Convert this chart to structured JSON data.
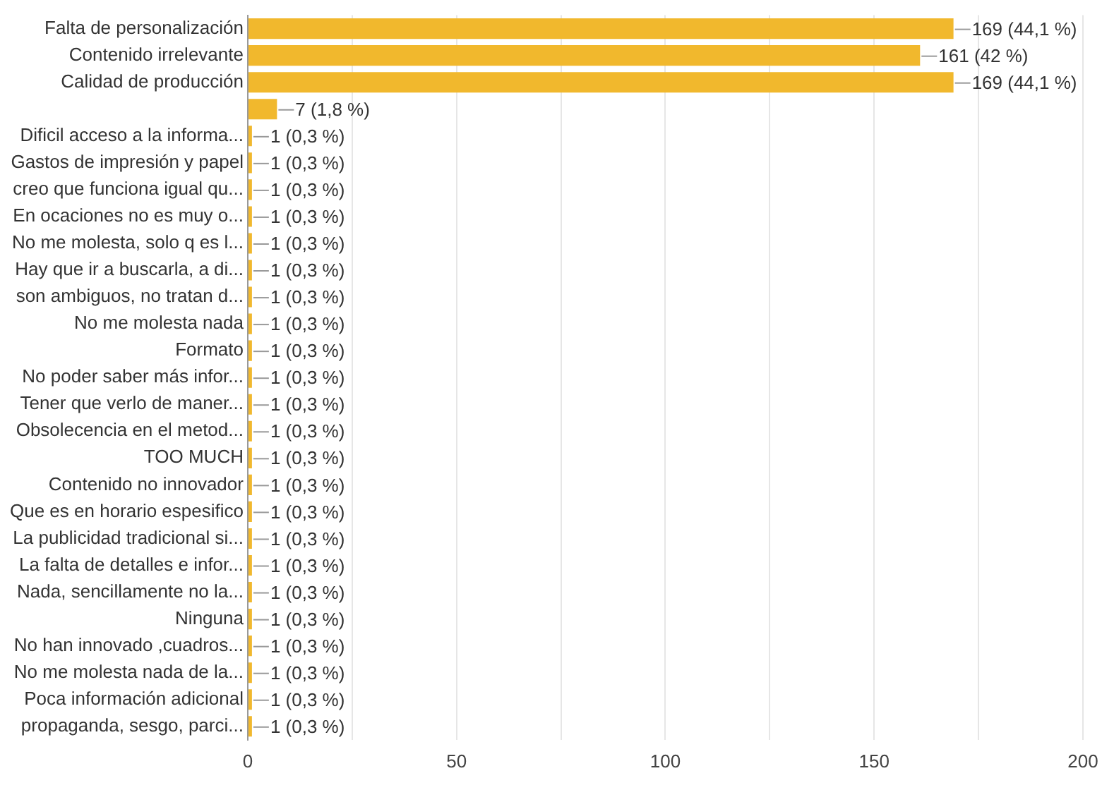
{
  "chart_data": {
    "type": "bar",
    "orientation": "horizontal",
    "categories": [
      "Falta de personalización",
      "Contenido irrelevante",
      "Calidad de producción",
      null,
      "Dificil acceso a la informa...",
      "Gastos de impresión y papel",
      "creo que funciona igual qu...",
      "En ocaciones no es muy o...",
      "No me molesta, solo q es l...",
      "Hay que ir a buscarla, a di...",
      "son ambiguos, no tratan d...",
      "No me molesta nada",
      "Formato",
      "No poder saber más infor...",
      "Tener que verlo de maner...",
      "Obsolecencia en el metod...",
      "TOO MUCH",
      "Contenido no innovador",
      "Que es en horario espesifico",
      "La publicidad tradicional si...",
      "La falta de detalles e infor...",
      "Nada, sencillamente no la...",
      "Ninguna",
      "No han innovado ,cuadros...",
      "No me molesta nada de la...",
      "Poca información adicional",
      "propaganda, sesgo, parci..."
    ],
    "values": [
      169,
      161,
      169,
      7,
      1,
      1,
      1,
      1,
      1,
      1,
      1,
      1,
      1,
      1,
      1,
      1,
      1,
      1,
      1,
      1,
      1,
      1,
      1,
      1,
      1,
      1,
      1
    ],
    "value_labels": [
      "169 (44,1 %)",
      "161 (42 %)",
      "169 (44,1 %)",
      "7 (1,8 %)",
      "1 (0,3 %)",
      "1 (0,3 %)",
      "1 (0,3 %)",
      "1 (0,3 %)",
      "1 (0,3 %)",
      "1 (0,3 %)",
      "1 (0,3 %)",
      "1 (0,3 %)",
      "1 (0,3 %)",
      "1 (0,3 %)",
      "1 (0,3 %)",
      "1 (0,3 %)",
      "1 (0,3 %)",
      "1 (0,3 %)",
      "1 (0,3 %)",
      "1 (0,3 %)",
      "1 (0,3 %)",
      "1 (0,3 %)",
      "1 (0,3 %)",
      "1 (0,3 %)",
      "1 (0,3 %)",
      "1 (0,3 %)",
      "1 (0,3 %)"
    ],
    "color": "#f1b82d",
    "xlim": [
      0,
      200
    ],
    "xticks": [
      0,
      {
        "value": 25,
        "label": null
      },
      50,
      {
        "value": 75,
        "label": null
      },
      100,
      {
        "value": 125,
        "label": null
      },
      150,
      {
        "value": 175,
        "label": null
      },
      200
    ],
    "grid": "x",
    "legend": false
  }
}
